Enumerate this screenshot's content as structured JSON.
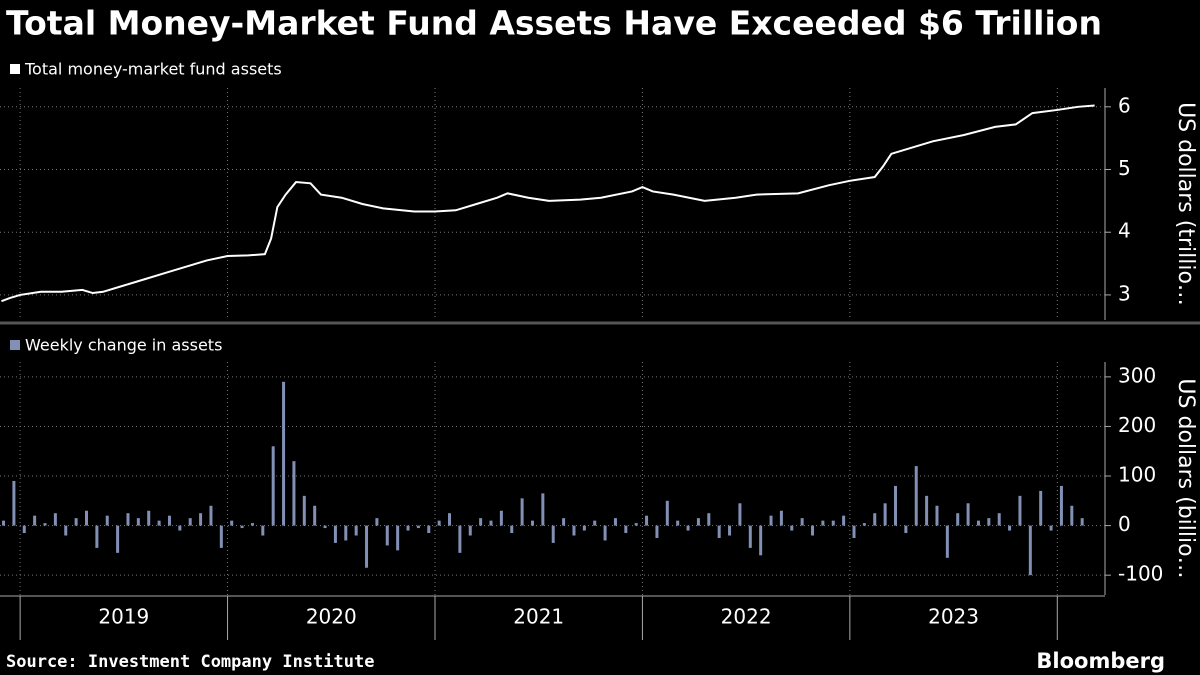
{
  "chart_data": [
    {
      "type": "line",
      "title": "Total Money-Market Fund Assets Have Exceeded $6 Trillion",
      "source": "Source: Investment Company Institute",
      "brand": "Bloomberg",
      "y_label": "US dollars (trillio…",
      "series": [
        {
          "name": "Total money-market fund assets",
          "color": "#ffffff",
          "x": [
            2018.91,
            2018.95,
            2019.0,
            2019.1,
            2019.2,
            2019.3,
            2019.35,
            2019.4,
            2019.5,
            2019.6,
            2019.7,
            2019.8,
            2019.9,
            2020.0,
            2020.1,
            2020.18,
            2020.21,
            2020.24,
            2020.28,
            2020.33,
            2020.4,
            2020.45,
            2020.55,
            2020.65,
            2020.75,
            2020.9,
            2021.0,
            2021.1,
            2021.2,
            2021.3,
            2021.35,
            2021.45,
            2021.55,
            2021.7,
            2021.8,
            2021.95,
            2022.0,
            2022.05,
            2022.15,
            2022.3,
            2022.45,
            2022.55,
            2022.75,
            2022.9,
            2023.0,
            2023.12,
            2023.16,
            2023.2,
            2023.3,
            2023.4,
            2023.55,
            2023.7,
            2023.8,
            2023.88,
            2024.0,
            2024.1,
            2024.18
          ],
          "values": [
            2.9,
            2.95,
            3.0,
            3.05,
            3.05,
            3.08,
            3.03,
            3.05,
            3.15,
            3.25,
            3.35,
            3.45,
            3.55,
            3.62,
            3.63,
            3.65,
            3.9,
            4.4,
            4.6,
            4.8,
            4.78,
            4.6,
            4.55,
            4.45,
            4.38,
            4.33,
            4.33,
            4.35,
            4.45,
            4.55,
            4.62,
            4.55,
            4.5,
            4.52,
            4.55,
            4.65,
            4.72,
            4.65,
            4.6,
            4.5,
            4.55,
            4.6,
            4.62,
            4.75,
            4.82,
            4.88,
            5.05,
            5.25,
            5.35,
            5.45,
            5.55,
            5.68,
            5.72,
            5.9,
            5.95,
            6.0,
            6.02
          ]
        }
      ],
      "xlim": [
        2018.903,
        2024.23
      ],
      "xticks": [
        2019,
        2020,
        2021,
        2022,
        2023,
        2024
      ],
      "ylim": [
        2.6,
        6.3
      ],
      "yticks": [
        3,
        4,
        5,
        6
      ],
      "grid": true
    },
    {
      "type": "bar",
      "y_label": "US dollars (billio…",
      "categories": [
        "2019",
        "2020",
        "2021",
        "2022",
        "2023"
      ],
      "series": [
        {
          "name": "Weekly change in assets",
          "color": "#8190b4",
          "x": [
            2018.92,
            2018.97,
            2019.02,
            2019.07,
            2019.12,
            2019.17,
            2019.22,
            2019.27,
            2019.32,
            2019.37,
            2019.42,
            2019.47,
            2019.52,
            2019.57,
            2019.62,
            2019.67,
            2019.72,
            2019.77,
            2019.82,
            2019.87,
            2019.92,
            2019.97,
            2020.02,
            2020.07,
            2020.12,
            2020.17,
            2020.22,
            2020.27,
            2020.32,
            2020.37,
            2020.42,
            2020.47,
            2020.52,
            2020.57,
            2020.62,
            2020.67,
            2020.72,
            2020.77,
            2020.82,
            2020.87,
            2020.92,
            2020.97,
            2021.02,
            2021.07,
            2021.12,
            2021.17,
            2021.22,
            2021.27,
            2021.32,
            2021.37,
            2021.42,
            2021.47,
            2021.52,
            2021.57,
            2021.62,
            2021.67,
            2021.72,
            2021.77,
            2021.82,
            2021.87,
            2021.92,
            2021.97,
            2022.02,
            2022.07,
            2022.12,
            2022.17,
            2022.22,
            2022.27,
            2022.32,
            2022.37,
            2022.42,
            2022.47,
            2022.52,
            2022.57,
            2022.62,
            2022.67,
            2022.72,
            2022.77,
            2022.82,
            2022.87,
            2022.92,
            2022.97,
            2023.02,
            2023.07,
            2023.12,
            2023.17,
            2023.22,
            2023.27,
            2023.32,
            2023.37,
            2023.42,
            2023.47,
            2023.52,
            2023.57,
            2023.62,
            2023.67,
            2023.72,
            2023.77,
            2023.82,
            2023.87,
            2023.92,
            2023.97,
            2024.02,
            2024.07,
            2024.12
          ],
          "values": [
            10,
            90,
            -15,
            20,
            5,
            25,
            -20,
            15,
            30,
            -45,
            20,
            -55,
            25,
            15,
            30,
            10,
            20,
            -10,
            15,
            25,
            40,
            -45,
            10,
            -5,
            5,
            -20,
            160,
            290,
            130,
            60,
            40,
            -5,
            -35,
            -30,
            -20,
            -85,
            15,
            -40,
            -50,
            -10,
            -5,
            -15,
            10,
            25,
            -55,
            -20,
            15,
            10,
            30,
            -15,
            55,
            10,
            65,
            -35,
            15,
            -20,
            -10,
            10,
            -30,
            15,
            -15,
            5,
            20,
            -25,
            50,
            10,
            -10,
            15,
            25,
            -25,
            -20,
            45,
            -45,
            -60,
            20,
            30,
            -10,
            15,
            -20,
            10,
            10,
            20,
            -25,
            5,
            25,
            45,
            80,
            -15,
            120,
            60,
            40,
            -65,
            25,
            45,
            10,
            15,
            25,
            -10,
            60,
            -100,
            70,
            -10,
            80,
            40,
            15
          ]
        }
      ],
      "xlim": [
        2018.903,
        2024.23
      ],
      "xticks": [
        2019,
        2020,
        2021,
        2022,
        2023,
        2024
      ],
      "ylim": [
        -140,
        330
      ],
      "yticks": [
        -100,
        0,
        100,
        200,
        300
      ],
      "grid": true
    }
  ]
}
